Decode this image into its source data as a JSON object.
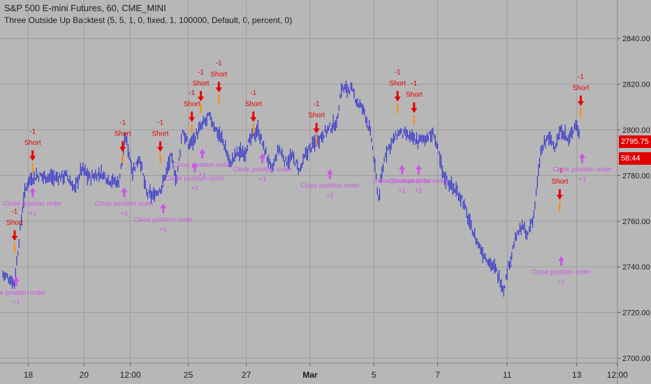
{
  "header": {
    "symbol_line": "S&P 500 E-mini Futures, 60, CME_MINI",
    "study_line": "Three Outside Up Backtest (5, 5, 1, 0, fixed, 1, 100000, Default, 0, percent, 0)"
  },
  "price_tags": {
    "last_price": "2795.75",
    "countdown": "58:44"
  },
  "colors": {
    "background": "#b7b7b7",
    "grid": "#9d9d9d",
    "bars": "#2a2acf",
    "short_marker": "#e60000",
    "close_marker": "#cc55e8",
    "price_tag": "#e00000"
  },
  "chart_data": {
    "type": "ohlc",
    "title": "S&P 500 E-mini Futures, 60, CME_MINI",
    "ylim": [
      2700,
      2850
    ],
    "y_ticks": [
      "2700.00",
      "2720.00",
      "2740.00",
      "2760.00",
      "2780.00",
      "2800.00",
      "2820.00",
      "2840.00"
    ],
    "y_tick_values": [
      2700,
      2720,
      2740,
      2760,
      2780,
      2800,
      2820,
      2840
    ],
    "x_ticks": [
      "18",
      "20",
      "12:00",
      "25",
      "27",
      "Mar",
      "5",
      "7",
      "11",
      "13",
      "12:00"
    ],
    "x_tick_index": [
      22,
      70,
      110,
      160,
      210,
      265,
      320,
      375,
      435,
      495,
      530
    ],
    "bar_count": 505,
    "grid": true,
    "price_path": [
      [
        0,
        2737
      ],
      [
        10,
        2733
      ],
      [
        18,
        2770
      ],
      [
        22,
        2778
      ],
      [
        30,
        2780
      ],
      [
        45,
        2779
      ],
      [
        55,
        2780
      ],
      [
        62,
        2774
      ],
      [
        68,
        2783
      ],
      [
        75,
        2779
      ],
      [
        85,
        2781
      ],
      [
        92,
        2778
      ],
      [
        100,
        2777
      ],
      [
        106,
        2797
      ],
      [
        112,
        2782
      ],
      [
        118,
        2788
      ],
      [
        124,
        2772
      ],
      [
        130,
        2771
      ],
      [
        137,
        2775
      ],
      [
        145,
        2788
      ],
      [
        150,
        2778
      ],
      [
        155,
        2800
      ],
      [
        160,
        2793
      ],
      [
        166,
        2797
      ],
      [
        172,
        2802
      ],
      [
        178,
        2806
      ],
      [
        184,
        2800
      ],
      [
        190,
        2795
      ],
      [
        196,
        2785
      ],
      [
        202,
        2790
      ],
      [
        208,
        2790
      ],
      [
        214,
        2796
      ],
      [
        220,
        2800
      ],
      [
        226,
        2791
      ],
      [
        232,
        2782
      ],
      [
        238,
        2792
      ],
      [
        244,
        2786
      ],
      [
        250,
        2788
      ],
      [
        256,
        2782
      ],
      [
        262,
        2790
      ],
      [
        270,
        2795
      ],
      [
        280,
        2800
      ],
      [
        288,
        2803
      ],
      [
        292,
        2818
      ],
      [
        300,
        2818
      ],
      [
        306,
        2812
      ],
      [
        312,
        2808
      ],
      [
        318,
        2796
      ],
      [
        324,
        2770
      ],
      [
        330,
        2790
      ],
      [
        336,
        2795
      ],
      [
        342,
        2799
      ],
      [
        350,
        2797
      ],
      [
        358,
        2795
      ],
      [
        366,
        2797
      ],
      [
        372,
        2798
      ],
      [
        380,
        2780
      ],
      [
        388,
        2775
      ],
      [
        396,
        2770
      ],
      [
        402,
        2760
      ],
      [
        408,
        2752
      ],
      [
        414,
        2746
      ],
      [
        420,
        2742
      ],
      [
        426,
        2738
      ],
      [
        432,
        2730
      ],
      [
        436,
        2740
      ],
      [
        442,
        2752
      ],
      [
        448,
        2758
      ],
      [
        452,
        2753
      ],
      [
        458,
        2763
      ],
      [
        464,
        2790
      ],
      [
        470,
        2797
      ],
      [
        476,
        2793
      ],
      [
        482,
        2800
      ],
      [
        488,
        2795
      ],
      [
        494,
        2803
      ],
      [
        500,
        2795
      ],
      [
        504,
        2795.75
      ]
    ],
    "signals": [
      {
        "type": "short",
        "label": "Short",
        "qty": "-1",
        "bar": 12,
        "price": 2745
      },
      {
        "type": "close",
        "label": "Close position order",
        "qty": "+1",
        "bar": 14,
        "price": 2737
      },
      {
        "type": "short",
        "label": "Short",
        "qty": "-1",
        "bar": 36,
        "price": 2780
      },
      {
        "type": "close",
        "label": "Close position order",
        "qty": "+1",
        "bar": 36,
        "price": 2776
      },
      {
        "type": "short",
        "label": "Short",
        "qty": "-1",
        "bar": 156,
        "price": 2784
      },
      {
        "type": "close",
        "label": "Close position order",
        "qty": "+1",
        "bar": 158,
        "price": 2776
      },
      {
        "type": "short",
        "label": "Short",
        "qty": "-1",
        "bar": 206,
        "price": 2784
      },
      {
        "type": "close",
        "label": "Close position order",
        "qty": "+1",
        "bar": 210,
        "price": 2769
      },
      {
        "type": "short",
        "label": "Short",
        "qty": "-1",
        "bar": 248,
        "price": 2797
      },
      {
        "type": "close",
        "label": "Close position order",
        "qty": "+1",
        "bar": 252,
        "price": 2787
      },
      {
        "type": "short",
        "label": "Short",
        "qty": "-1",
        "bar": 260,
        "price": 2806
      },
      {
        "type": "close",
        "label": "Close position order",
        "qty": "+1",
        "bar": 262,
        "price": 2793
      },
      {
        "type": "short",
        "label": "Short",
        "qty": "-1",
        "bar": 284,
        "price": 2810
      },
      {
        "type": "short",
        "label": "Short",
        "qty": "-1",
        "bar": 330,
        "price": 2797
      },
      {
        "type": "close",
        "label": "Close position order",
        "qty": "+1",
        "bar": 342,
        "price": 2791
      },
      {
        "type": "short",
        "label": "Short",
        "qty": "-1",
        "bar": 414,
        "price": 2792
      },
      {
        "type": "close",
        "label": "Close position order",
        "qty": "+1",
        "bar": 432,
        "price": 2784
      },
      {
        "type": "short",
        "label": "Short",
        "qty": "-1",
        "bar": 522,
        "price": 2806
      },
      {
        "type": "close",
        "label": "Close position order",
        "qty": "+1",
        "bar": 528,
        "price": 2786
      },
      {
        "type": "short",
        "label": "Short",
        "qty": "-1",
        "bar": 544,
        "price": 2801
      },
      {
        "type": "close",
        "label": "Close position order",
        "qty": "+1",
        "bar": 550,
        "price": 2786
      },
      {
        "type": "short",
        "label": "Short",
        "qty": "-1",
        "bar": 738,
        "price": 2763
      },
      {
        "type": "close",
        "label": "Close position order",
        "qty": "+1",
        "bar": 740,
        "price": 2746
      },
      {
        "type": "short",
        "label": "Short",
        "qty": "-1",
        "bar": 766,
        "price": 2804
      },
      {
        "type": "close",
        "label": "Close position order",
        "qty": "+1",
        "bar": 768,
        "price": 2791
      }
    ]
  }
}
